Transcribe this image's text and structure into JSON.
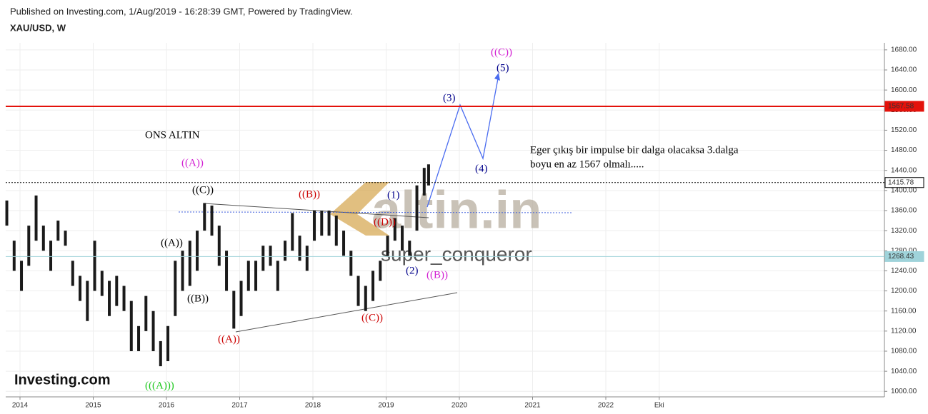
{
  "header": {
    "published": "Published on Investing.com, 1/Aug/2019 - 16:28:39 GMT, Powered by TradingView.",
    "symbol": "XAU/USD, W"
  },
  "chart_data": {
    "type": "range-bar",
    "color": "#1a1a1a",
    "x": [
      2013.82,
      2013.92,
      2014.02,
      2014.12,
      2014.22,
      2014.32,
      2014.42,
      2014.52,
      2014.62,
      2014.72,
      2014.82,
      2014.92,
      2015.02,
      2015.12,
      2015.22,
      2015.32,
      2015.42,
      2015.52,
      2015.62,
      2015.72,
      2015.82,
      2015.92,
      2016.02,
      2016.12,
      2016.22,
      2016.32,
      2016.42,
      2016.52,
      2016.62,
      2016.72,
      2016.82,
      2016.92,
      2017.02,
      2017.12,
      2017.22,
      2017.32,
      2017.42,
      2017.52,
      2017.62,
      2017.72,
      2017.82,
      2017.92,
      2018.02,
      2018.12,
      2018.22,
      2018.32,
      2018.42,
      2018.52,
      2018.62,
      2018.72,
      2018.82,
      2018.92,
      2019.02,
      2019.12,
      2019.22,
      2019.32,
      2019.42,
      2019.52,
      2019.58
    ],
    "high": [
      1380,
      1300,
      1260,
      1330,
      1390,
      1330,
      1300,
      1340,
      1320,
      1260,
      1230,
      1220,
      1300,
      1240,
      1220,
      1230,
      1210,
      1180,
      1130,
      1190,
      1160,
      1100,
      1130,
      1260,
      1280,
      1300,
      1320,
      1375,
      1370,
      1330,
      1280,
      1200,
      1220,
      1260,
      1260,
      1290,
      1290,
      1260,
      1300,
      1355,
      1310,
      1290,
      1360,
      1360,
      1360,
      1350,
      1320,
      1280,
      1230,
      1210,
      1240,
      1260,
      1310,
      1345,
      1330,
      1300,
      1410,
      1445,
      1452
    ],
    "low": [
      1330,
      1240,
      1200,
      1250,
      1300,
      1280,
      1240,
      1300,
      1290,
      1210,
      1180,
      1140,
      1200,
      1190,
      1150,
      1170,
      1160,
      1080,
      1080,
      1120,
      1080,
      1050,
      1060,
      1150,
      1200,
      1210,
      1240,
      1320,
      1310,
      1250,
      1200,
      1125,
      1150,
      1200,
      1200,
      1240,
      1250,
      1200,
      1260,
      1280,
      1260,
      1240,
      1300,
      1310,
      1310,
      1290,
      1270,
      1230,
      1170,
      1160,
      1180,
      1220,
      1270,
      1300,
      1280,
      1270,
      1320,
      1390,
      1410
    ],
    "xlim": [
      2013.805,
      2025.805
    ],
    "xticks": [
      2014,
      2015,
      2016,
      2017,
      2018,
      2019,
      2020,
      2021,
      2022,
      {
        "value": 2022.73,
        "label": "Eki"
      }
    ],
    "ylim": [
      989,
      1694
    ],
    "yticks": [
      {
        "value": 1000,
        "label": "1000.00"
      },
      {
        "value": 1040,
        "label": "1040.00"
      },
      {
        "value": 1080,
        "label": "1080.00"
      },
      {
        "value": 1120,
        "label": "1120.00"
      },
      {
        "value": 1160,
        "label": "1160.00"
      },
      {
        "value": 1200,
        "label": "1200.00"
      },
      {
        "value": 1240,
        "label": "1240.00"
      },
      {
        "value": 1280,
        "label": "1280.00"
      },
      {
        "value": 1320,
        "label": "1320.00"
      },
      {
        "value": 1360,
        "label": "1360.00"
      },
      {
        "value": 1400,
        "label": "1400.00"
      },
      {
        "value": 1440,
        "label": "1440.00"
      },
      {
        "value": 1480,
        "label": "1480.00"
      },
      {
        "value": 1520,
        "label": "1520.00"
      },
      {
        "value": 1560,
        "label": "1560.00"
      },
      {
        "value": 1600,
        "label": "1600.00"
      },
      {
        "value": 1640,
        "label": "1640.00"
      },
      {
        "value": 1680,
        "label": "1680.00"
      }
    ],
    "grid": true,
    "levels": [
      {
        "value": 1567.58,
        "color": "#e3120b"
      },
      {
        "value": 1415.78,
        "color": "#000000"
      },
      {
        "value": 1268.43,
        "color": "#9fd3da"
      }
    ],
    "annotations": [
      "ONS ALTIN",
      "((A))",
      "((C))",
      "((A))",
      "((B))",
      "(((A)))",
      "((A))",
      "((B))",
      "((D))",
      "((C))",
      "(1)",
      "(2)",
      "((B))",
      "(3)",
      "(4)",
      "(5)",
      "((C))"
    ],
    "note": [
      "Eger çıkış bir impulse bir dalga olacaksa 3.dalga",
      "boyu en az 1567 olmalı....."
    ],
    "watermark": [
      "altin.in",
      "super_conqueror"
    ],
    "logo": "Investing.com"
  }
}
